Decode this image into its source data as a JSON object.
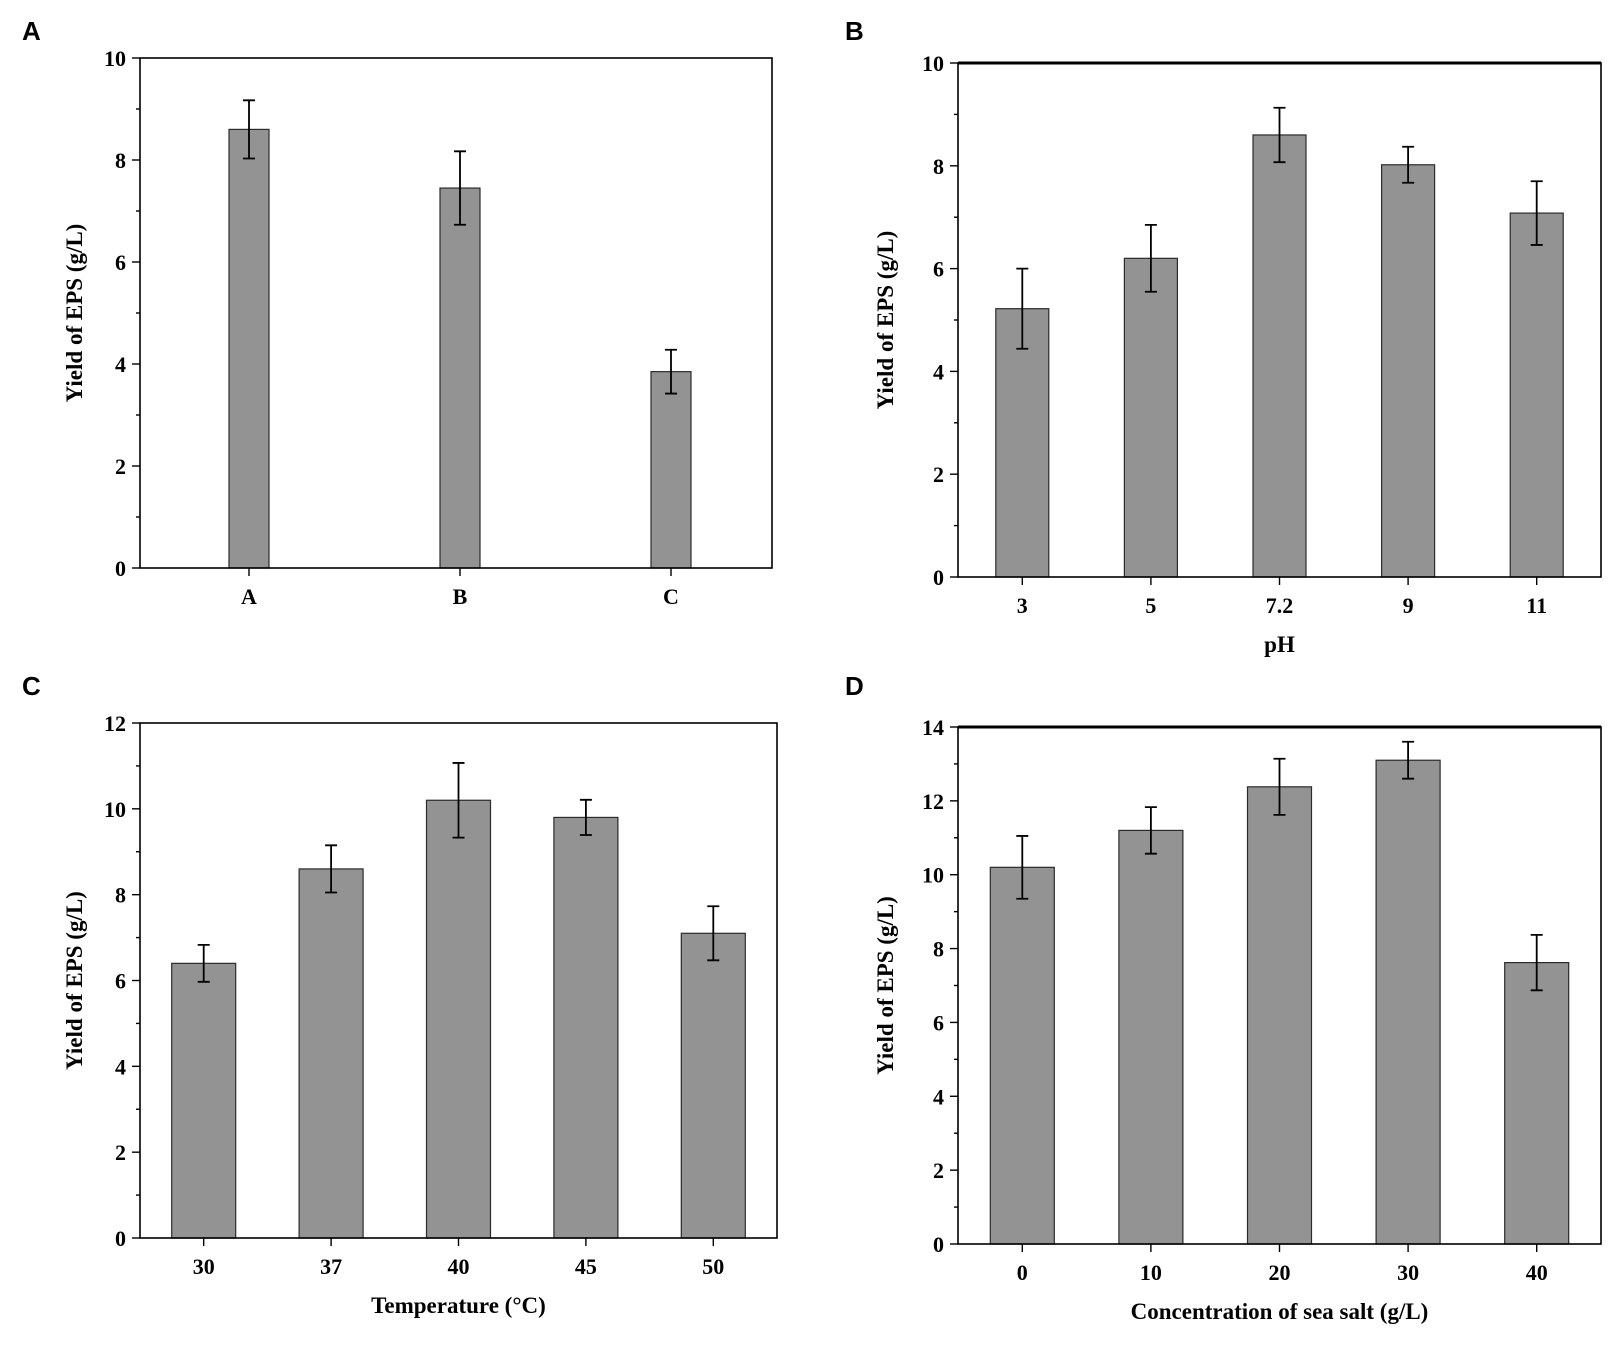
{
  "chart_data": [
    {
      "type": "bar",
      "panel": "A",
      "categories": [
        "A",
        "B",
        "C"
      ],
      "values": [
        8.6,
        7.45,
        3.85
      ],
      "errors": [
        0.57,
        0.72,
        0.43
      ],
      "xlabel": "",
      "ylabel": "Yield of EPS (g/L)",
      "ylim": [
        0,
        10
      ],
      "yticks": [
        0,
        2,
        4,
        6,
        8,
        10
      ]
    },
    {
      "type": "bar",
      "panel": "B",
      "categories": [
        "3",
        "5",
        "7.2",
        "9",
        "11"
      ],
      "values": [
        5.22,
        6.2,
        8.6,
        8.02,
        7.08
      ],
      "errors": [
        0.78,
        0.65,
        0.53,
        0.35,
        0.62
      ],
      "xlabel": "pH",
      "ylabel": "Yield of EPS (g/L)",
      "ylim": [
        0,
        10
      ],
      "yticks": [
        0,
        2,
        4,
        6,
        8,
        10
      ]
    },
    {
      "type": "bar",
      "panel": "C",
      "categories": [
        "30",
        "37",
        "40",
        "45",
        "50"
      ],
      "values": [
        6.4,
        8.6,
        10.2,
        9.8,
        7.1
      ],
      "errors": [
        0.43,
        0.55,
        0.87,
        0.41,
        0.63
      ],
      "xlabel": "Temperature (°C)",
      "ylabel": "Yield of EPS (g/L)",
      "ylim": [
        0,
        12
      ],
      "yticks": [
        0,
        2,
        4,
        6,
        8,
        10,
        12
      ]
    },
    {
      "type": "bar",
      "panel": "D",
      "categories": [
        "0",
        "10",
        "20",
        "30",
        "40"
      ],
      "values": [
        10.2,
        11.2,
        12.38,
        13.1,
        7.62
      ],
      "errors": [
        0.85,
        0.63,
        0.76,
        0.5,
        0.75
      ],
      "xlabel": "Concentration of sea salt (g/L)",
      "ylabel": "Yield of EPS (g/L)",
      "ylim": [
        0,
        14
      ],
      "yticks": [
        0,
        2,
        4,
        6,
        8,
        10,
        12,
        14
      ]
    }
  ]
}
